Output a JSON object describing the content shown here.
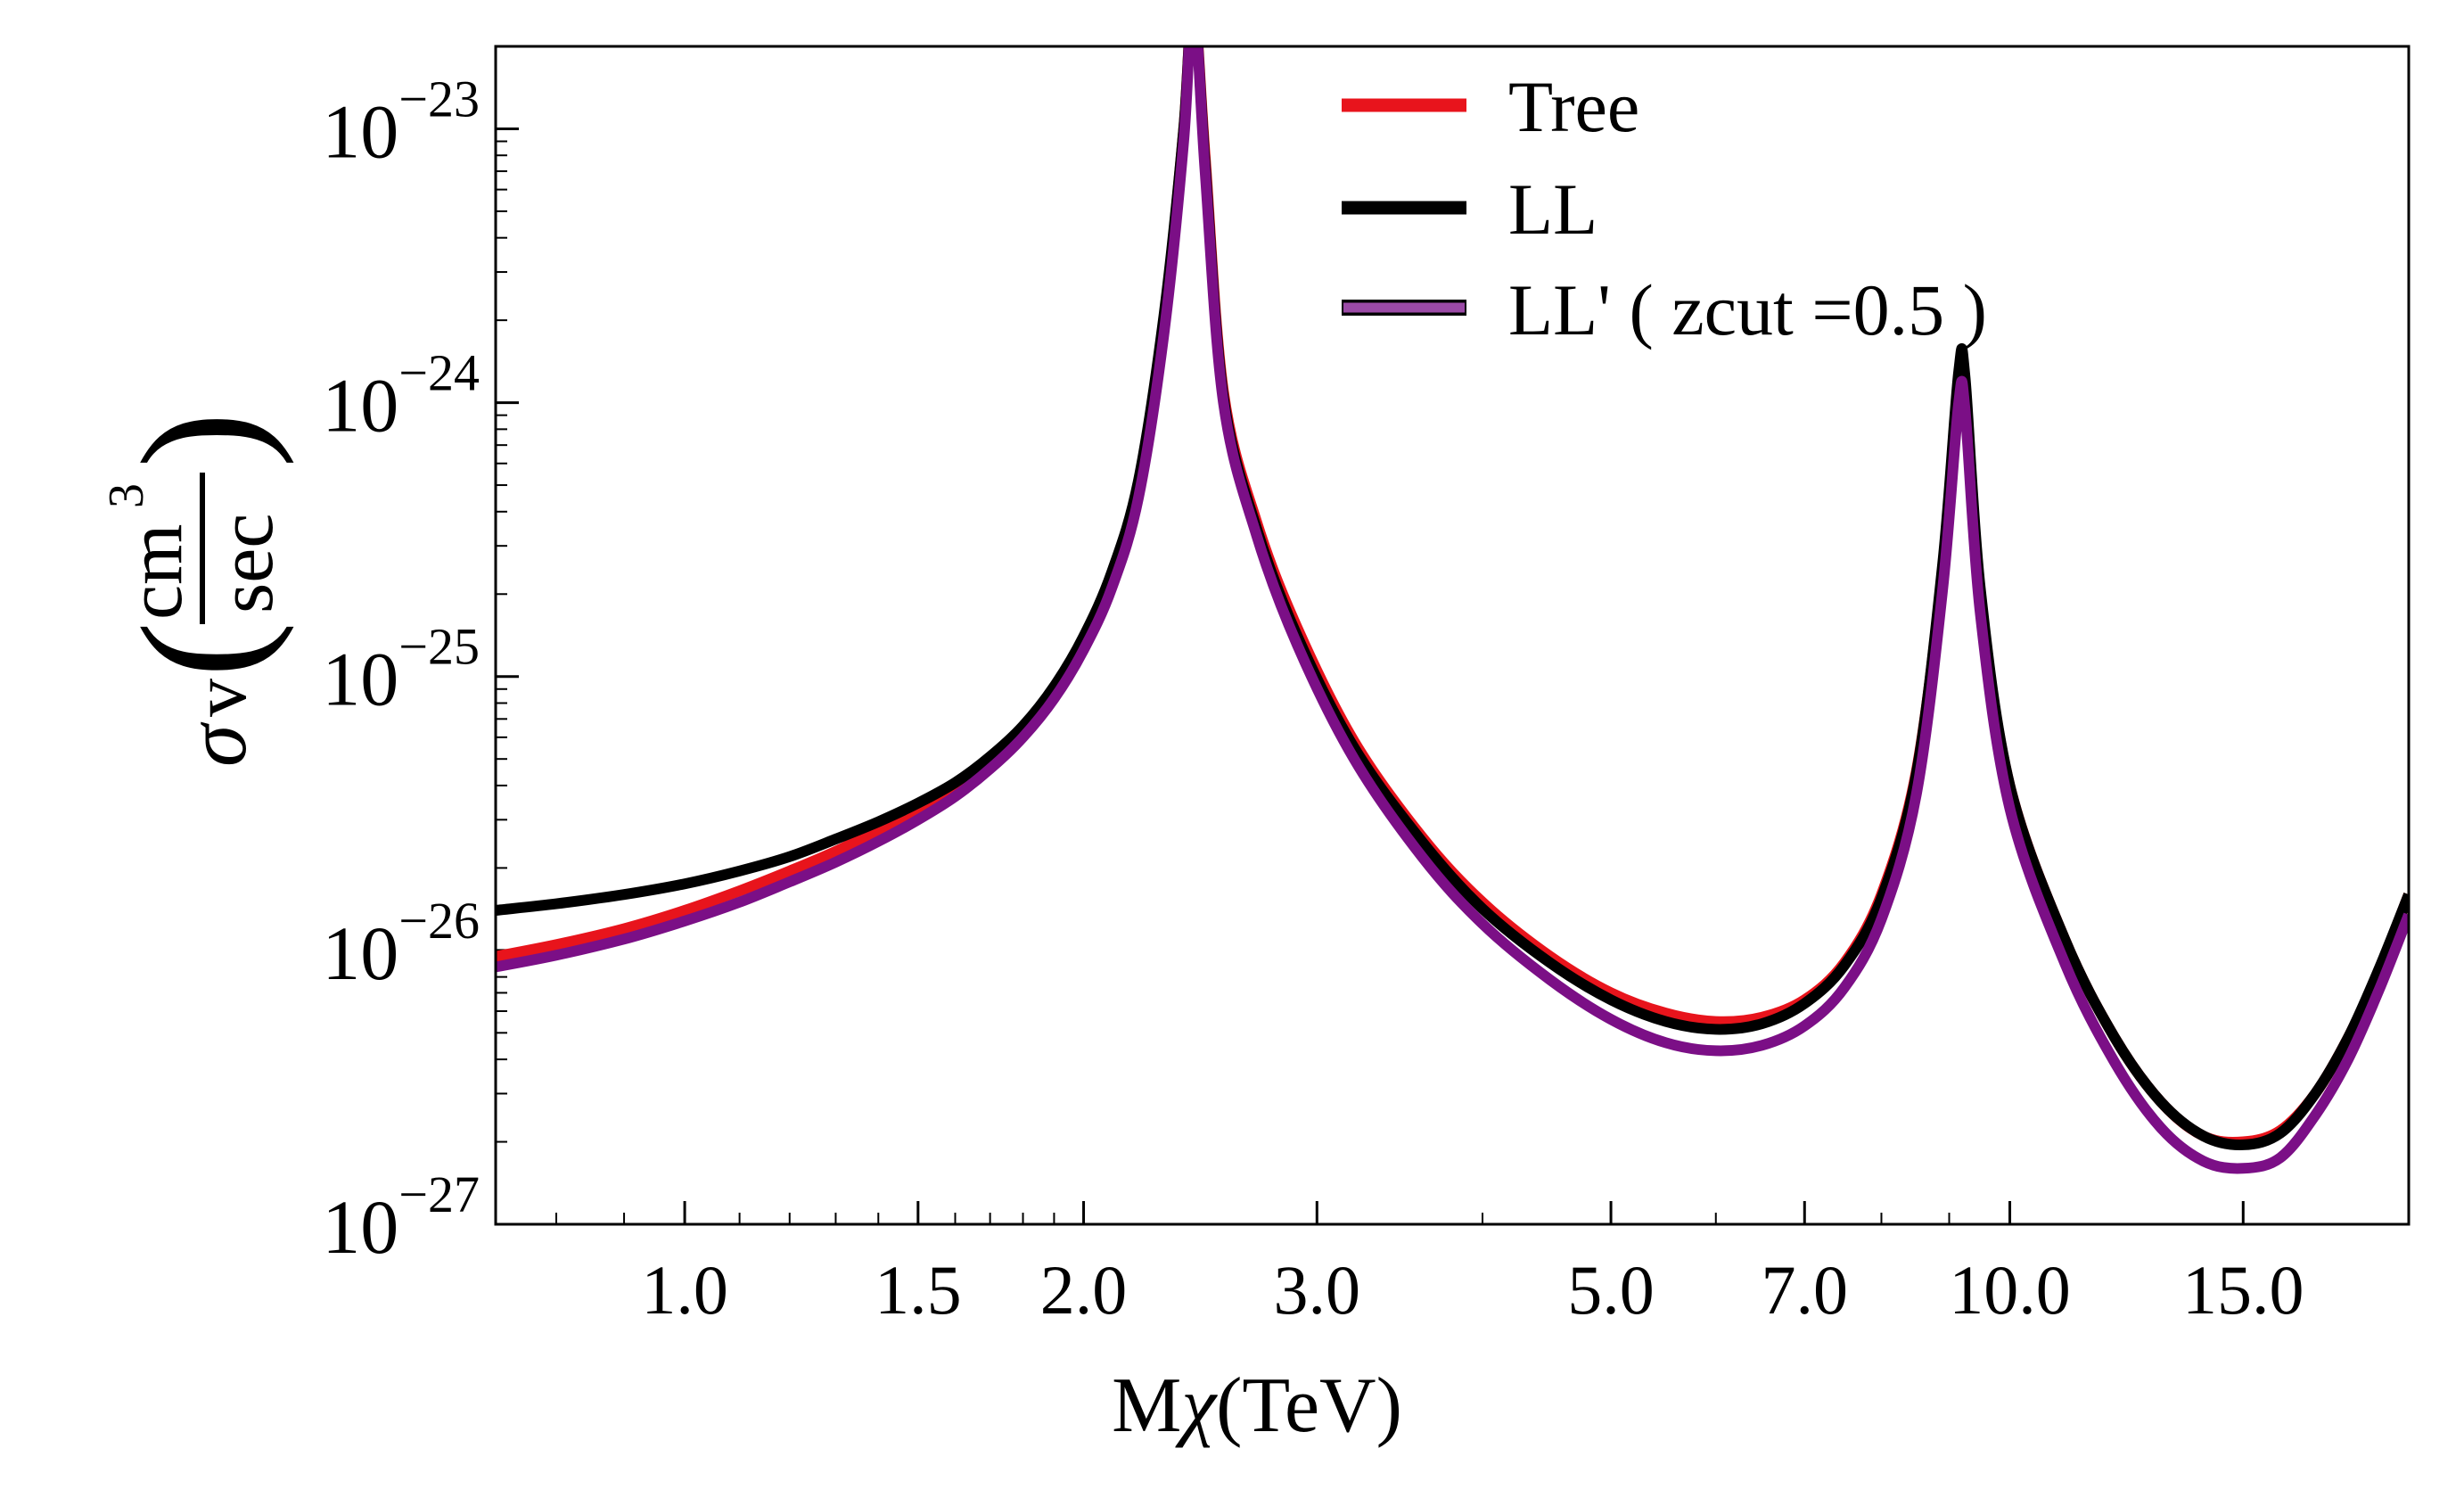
{
  "chart_data": {
    "type": "line",
    "title": "",
    "xlabel": "Mχ(TeV)",
    "xlabel_parts": {
      "prefix": "M",
      "symbol": "χ",
      "suffix": "(TeV)"
    },
    "ylabel": "σv(cm³/sec)",
    "ylabel_parts": {
      "sigma": "σ",
      "v": "v",
      "num": "cm",
      "exp": "3",
      "den": "sec",
      "lparen": "(",
      "rparen": ")"
    },
    "x_scale": "log",
    "y_scale": "log",
    "xlim": [
      0.72,
      20.0
    ],
    "ylim": [
      1e-27,
      2e-23
    ],
    "x_ticks": [
      {
        "value": 1.0,
        "label": "1.0"
      },
      {
        "value": 1.5,
        "label": "1.5"
      },
      {
        "value": 2.0,
        "label": "2.0"
      },
      {
        "value": 3.0,
        "label": "3.0"
      },
      {
        "value": 5.0,
        "label": "5.0"
      },
      {
        "value": 7.0,
        "label": "7.0"
      },
      {
        "value": 10.0,
        "label": "10.0"
      },
      {
        "value": 15.0,
        "label": "15.0"
      }
    ],
    "x_minor_ticks": [
      0.8,
      0.9,
      1.1,
      1.2,
      1.3,
      1.4,
      1.6,
      1.7,
      1.8,
      1.9,
      4.0,
      6.0,
      8.0,
      9.0,
      20.0
    ],
    "y_ticks": [
      {
        "value": 1e-27,
        "base": "10",
        "exp": "−27"
      },
      {
        "value": 1e-26,
        "base": "10",
        "exp": "−26"
      },
      {
        "value": 1e-25,
        "base": "10",
        "exp": "−25"
      },
      {
        "value": 1e-24,
        "base": "10",
        "exp": "−24"
      },
      {
        "value": 1e-23,
        "base": "10",
        "exp": "−23"
      }
    ],
    "legend_position": "top-center",
    "series": [
      {
        "name": "Tree",
        "color": "#e8141c",
        "points": [
          [
            0.72,
            9.5e-27
          ],
          [
            0.8,
            1.05e-26
          ],
          [
            0.9,
            1.2e-26
          ],
          [
            1.0,
            1.4e-26
          ],
          [
            1.1,
            1.65e-26
          ],
          [
            1.2,
            1.95e-26
          ],
          [
            1.3,
            2.3e-26
          ],
          [
            1.4,
            2.75e-26
          ],
          [
            1.5,
            3.3e-26
          ],
          [
            1.6,
            4e-26
          ],
          [
            1.7,
            5e-26
          ],
          [
            1.8,
            6.5e-26
          ],
          [
            1.9,
            9e-26
          ],
          [
            2.0,
            1.35e-25
          ],
          [
            2.1,
            2.3e-25
          ],
          [
            2.2,
            5e-25
          ],
          [
            2.3,
            2e-24
          ],
          [
            2.38,
            1e-23
          ],
          [
            2.42,
            3e-23
          ],
          [
            2.47,
            8e-24
          ],
          [
            2.55,
            1.1e-24
          ],
          [
            2.7,
            3.7e-25
          ],
          [
            2.9,
            1.5e-25
          ],
          [
            3.2,
            5.8e-26
          ],
          [
            3.6,
            2.6e-26
          ],
          [
            4.0,
            1.5e-26
          ],
          [
            4.5,
            9.5e-27
          ],
          [
            5.0,
            7e-27
          ],
          [
            5.5,
            5.9e-27
          ],
          [
            6.0,
            5.5e-27
          ],
          [
            6.5,
            5.7e-27
          ],
          [
            7.0,
            6.6e-27
          ],
          [
            7.5,
            9e-27
          ],
          [
            8.0,
            1.6e-26
          ],
          [
            8.5,
            4.5e-26
          ],
          [
            8.9,
            2.5e-25
          ],
          [
            9.15,
            1.2e-24
          ],
          [
            9.25,
            1.1e-24
          ],
          [
            9.5,
            2e-25
          ],
          [
            10.0,
            4e-26
          ],
          [
            11.0,
            1.1e-26
          ],
          [
            12.0,
            4.8e-27
          ],
          [
            13.0,
            2.8e-27
          ],
          [
            14.0,
            2.1e-27
          ],
          [
            15.0,
            2e-27
          ],
          [
            16.0,
            2.2e-27
          ],
          [
            17.0,
            3e-27
          ],
          [
            18.0,
            4.8e-27
          ],
          [
            19.0,
            8.5e-27
          ],
          [
            20.0,
            1.6e-26
          ]
        ]
      },
      {
        "name": "LL",
        "color": "#000000",
        "points": [
          [
            0.72,
            1.4e-26
          ],
          [
            0.8,
            1.48e-26
          ],
          [
            0.9,
            1.6e-26
          ],
          [
            1.0,
            1.75e-26
          ],
          [
            1.1,
            1.95e-26
          ],
          [
            1.2,
            2.2e-26
          ],
          [
            1.3,
            2.55e-26
          ],
          [
            1.4,
            2.95e-26
          ],
          [
            1.5,
            3.45e-26
          ],
          [
            1.6,
            4.1e-26
          ],
          [
            1.7,
            5.1e-26
          ],
          [
            1.8,
            6.6e-26
          ],
          [
            1.9,
            9.2e-26
          ],
          [
            2.0,
            1.4e-25
          ],
          [
            2.1,
            2.4e-25
          ],
          [
            2.2,
            5.2e-25
          ],
          [
            2.3,
            2.1e-24
          ],
          [
            2.38,
            1e-23
          ],
          [
            2.42,
            3e-23
          ],
          [
            2.47,
            7.5e-24
          ],
          [
            2.55,
            1.05e-24
          ],
          [
            2.7,
            3.5e-25
          ],
          [
            2.9,
            1.4e-25
          ],
          [
            3.2,
            5.5e-26
          ],
          [
            3.6,
            2.5e-26
          ],
          [
            4.0,
            1.42e-26
          ],
          [
            4.5,
            9e-27
          ],
          [
            5.0,
            6.6e-27
          ],
          [
            5.5,
            5.5e-27
          ],
          [
            6.0,
            5.15e-27
          ],
          [
            6.5,
            5.4e-27
          ],
          [
            7.0,
            6.4e-27
          ],
          [
            7.5,
            8.8e-27
          ],
          [
            8.0,
            1.55e-26
          ],
          [
            8.5,
            4.4e-26
          ],
          [
            8.9,
            2.6e-25
          ],
          [
            9.15,
            1.3e-24
          ],
          [
            9.25,
            1.25e-24
          ],
          [
            9.5,
            2.1e-25
          ],
          [
            10.0,
            4e-26
          ],
          [
            11.0,
            1.1e-26
          ],
          [
            12.0,
            4.8e-27
          ],
          [
            13.0,
            2.8e-27
          ],
          [
            14.0,
            2.1e-27
          ],
          [
            15.0,
            1.95e-27
          ],
          [
            16.0,
            2.15e-27
          ],
          [
            17.0,
            3e-27
          ],
          [
            18.0,
            4.8e-27
          ],
          [
            19.0,
            8.6e-27
          ],
          [
            20.0,
            1.6e-26
          ]
        ]
      },
      {
        "name": "LL' ( zcut =0.5 )",
        "color": "#7b0f86",
        "points": [
          [
            0.72,
            8.7e-27
          ],
          [
            0.8,
            9.6e-27
          ],
          [
            0.9,
            1.1e-26
          ],
          [
            1.0,
            1.28e-26
          ],
          [
            1.1,
            1.5e-26
          ],
          [
            1.2,
            1.78e-26
          ],
          [
            1.3,
            2.1e-26
          ],
          [
            1.4,
            2.5e-26
          ],
          [
            1.5,
            3e-26
          ],
          [
            1.6,
            3.65e-26
          ],
          [
            1.7,
            4.6e-26
          ],
          [
            1.8,
            6e-26
          ],
          [
            1.9,
            8.3e-26
          ],
          [
            2.0,
            1.25e-25
          ],
          [
            2.1,
            2.1e-25
          ],
          [
            2.2,
            4.5e-25
          ],
          [
            2.3,
            1.8e-24
          ],
          [
            2.38,
            9e-24
          ],
          [
            2.42,
            3e-23
          ],
          [
            2.47,
            7e-24
          ],
          [
            2.55,
            1e-24
          ],
          [
            2.7,
            3.3e-25
          ],
          [
            2.9,
            1.3e-25
          ],
          [
            3.2,
            5e-26
          ],
          [
            3.6,
            2.2e-26
          ],
          [
            4.0,
            1.25e-26
          ],
          [
            4.5,
            7.8e-27
          ],
          [
            5.0,
            5.6e-27
          ],
          [
            5.5,
            4.6e-27
          ],
          [
            6.0,
            4.3e-27
          ],
          [
            6.5,
            4.5e-27
          ],
          [
            7.0,
            5.3e-27
          ],
          [
            7.5,
            7.3e-27
          ],
          [
            8.0,
            1.3e-26
          ],
          [
            8.5,
            3.7e-26
          ],
          [
            8.9,
            2.1e-25
          ],
          [
            9.15,
            1e-24
          ],
          [
            9.25,
            9.5e-25
          ],
          [
            9.5,
            1.7e-25
          ],
          [
            10.0,
            3.3e-26
          ],
          [
            11.0,
            9e-27
          ],
          [
            12.0,
            3.9e-27
          ],
          [
            13.0,
            2.25e-27
          ],
          [
            14.0,
            1.7e-27
          ],
          [
            15.0,
            1.6e-27
          ],
          [
            16.0,
            1.75e-27
          ],
          [
            17.0,
            2.5e-27
          ],
          [
            18.0,
            4e-27
          ],
          [
            19.0,
            7.2e-27
          ],
          [
            20.0,
            1.35e-26
          ]
        ]
      }
    ]
  }
}
